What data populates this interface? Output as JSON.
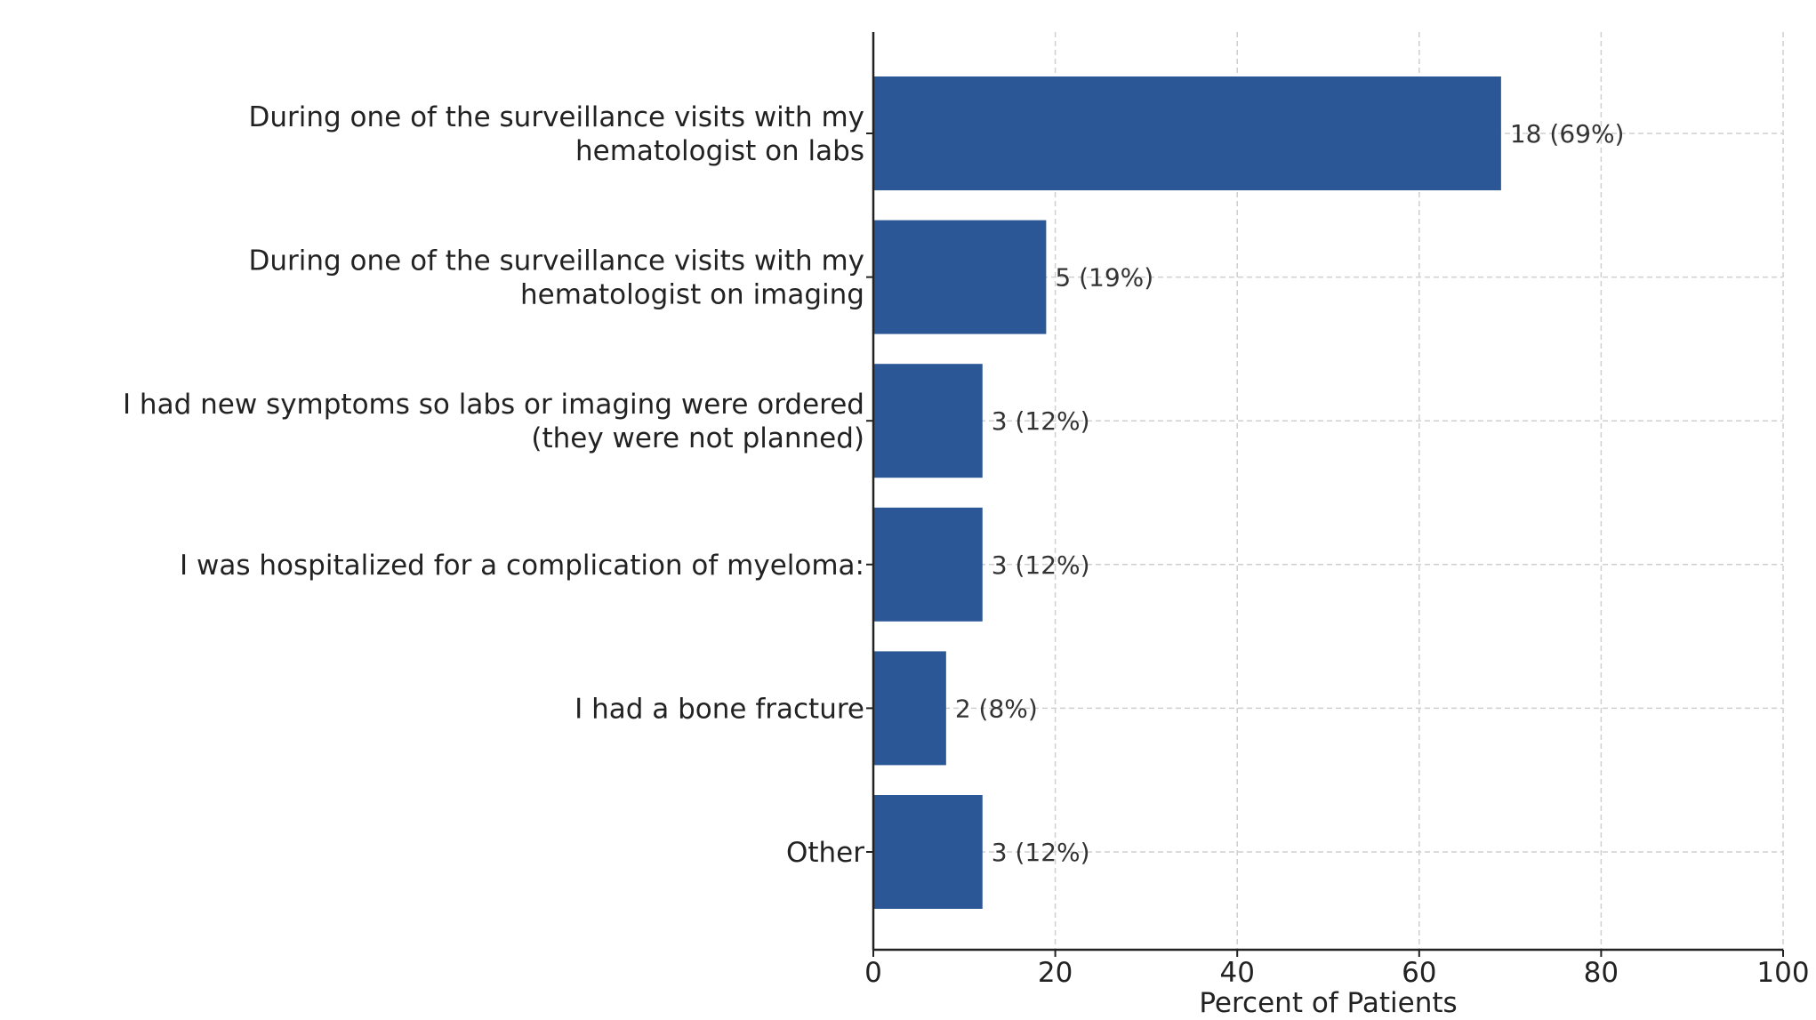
{
  "chart_data": {
    "type": "bar",
    "orientation": "horizontal",
    "categories": [
      [
        "During one of the surveillance visits with my",
        "hematologist on labs"
      ],
      [
        "During one of the surveillance visits with my",
        "hematologist on imaging"
      ],
      [
        "I had new symptoms so labs or imaging were ordered",
        "(they were not planned)"
      ],
      [
        "I was hospitalized for a complication of myeloma:"
      ],
      [
        "I had a bone fracture"
      ],
      [
        "Other"
      ]
    ],
    "series": [
      {
        "values": [
          69,
          19,
          12,
          12,
          8,
          12
        ],
        "data_labels": [
          "18 (69%)",
          "5 (19%)",
          "3 (12%)",
          "3 (12%)",
          "2 (8%)",
          "3 (12%)"
        ]
      }
    ],
    "xlabel": "Percent of Patients",
    "ylabel": "",
    "title": "",
    "xlim": [
      0,
      100
    ],
    "xticks": [
      0,
      20,
      40,
      60,
      80,
      100
    ],
    "grid": true,
    "bar_color": "#2b5797",
    "grid_color": "#cfcfcf",
    "axis_color": "#222222"
  }
}
